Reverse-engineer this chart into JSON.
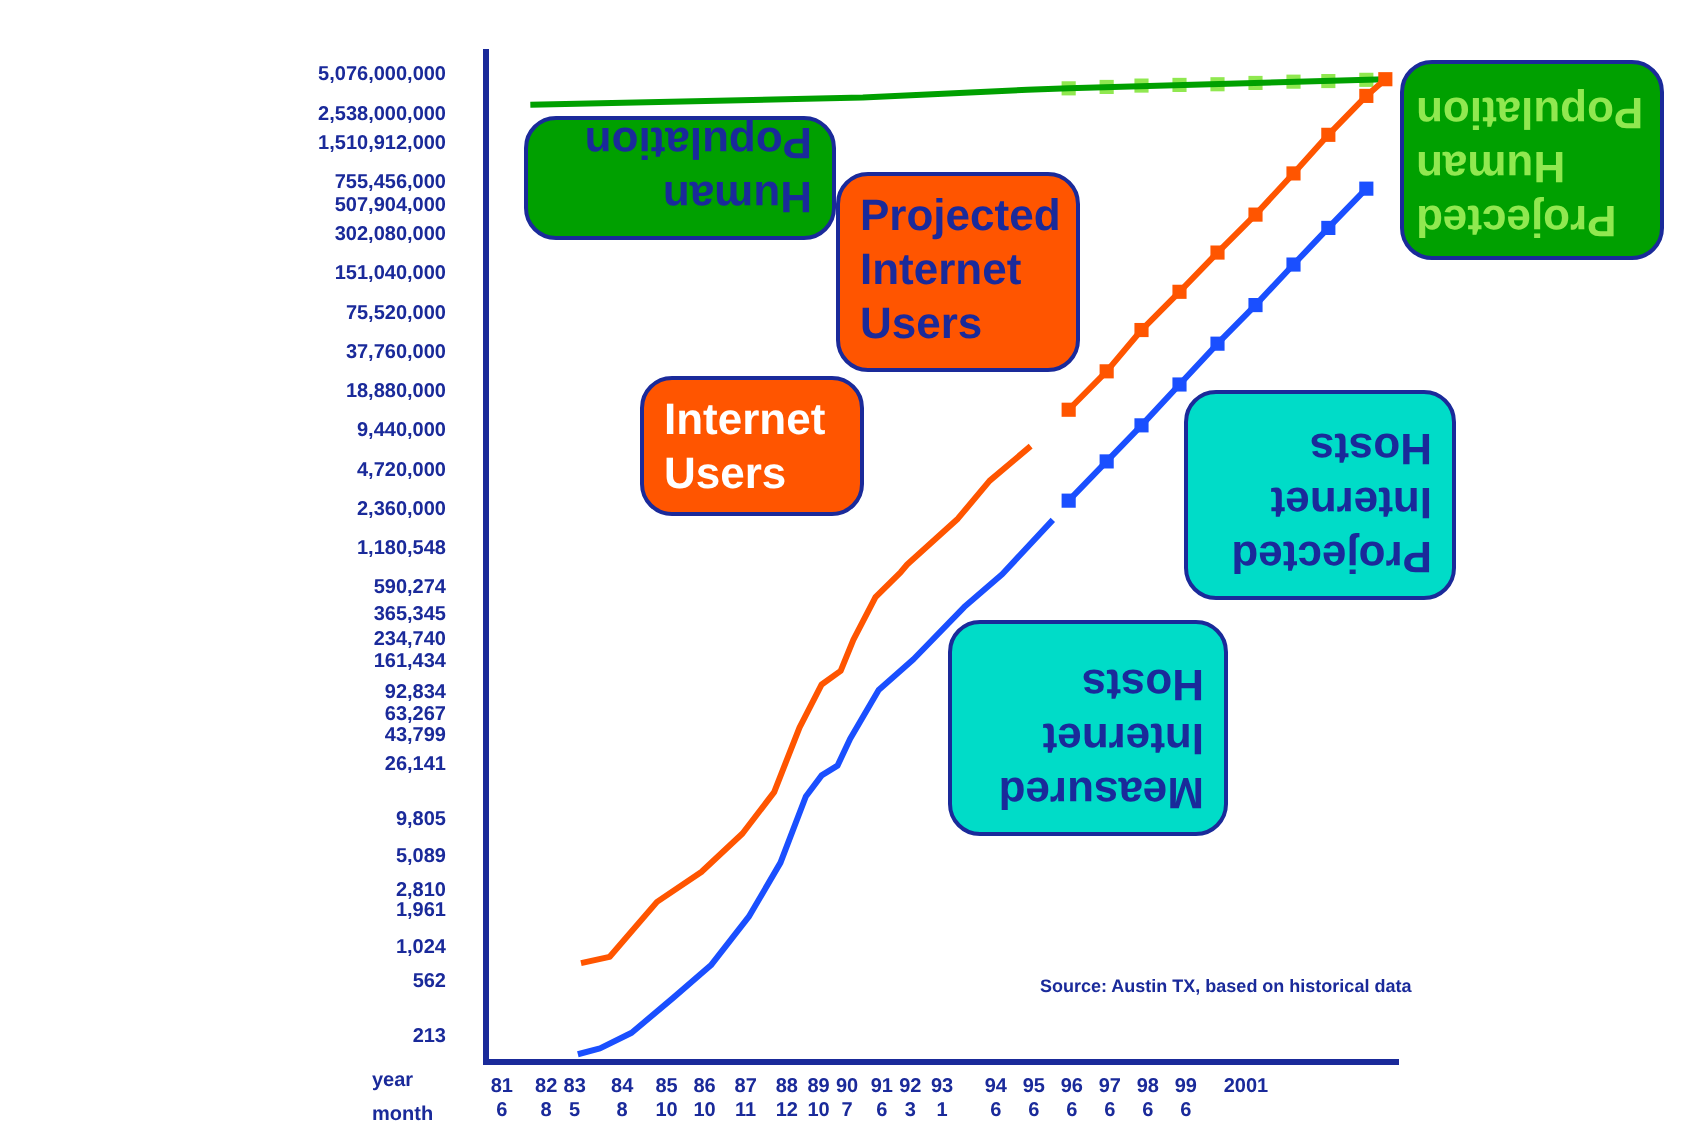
{
  "chart_data": {
    "type": "line",
    "log": "y",
    "grid": false,
    "legend": false,
    "annotations": [
      "year",
      "month",
      "Source: Austin TX, based on historical data"
    ],
    "xlim": [
      "1981-01",
      "2005-01"
    ],
    "xticks": [
      {
        "value": "1981-06",
        "label": "81\n6"
      },
      {
        "value": "1982-08",
        "label": "82\n8"
      },
      {
        "value": "1983-05",
        "label": "83\n5"
      },
      {
        "value": "1984-08",
        "label": "84\n8"
      },
      {
        "value": "1985-10",
        "label": "85\n10"
      },
      {
        "value": "1986-10",
        "label": "86\n10"
      },
      {
        "value": "1987-11",
        "label": "87\n11"
      },
      {
        "value": "1988-12",
        "label": "88\n12"
      },
      {
        "value": "1989-10",
        "label": "89\n10"
      },
      {
        "value": "1990-07",
        "label": "90\n7"
      },
      {
        "value": "1991-06",
        "label": "91\n6"
      },
      {
        "value": "1992-03",
        "label": "92\n3"
      },
      {
        "value": "1993-01",
        "label": "93\n1"
      },
      {
        "value": "1994-06",
        "label": "94\n6"
      },
      {
        "value": "1995-06",
        "label": "95\n6"
      },
      {
        "value": "1996-06",
        "label": "96\n6"
      },
      {
        "value": "1997-06",
        "label": "97\n6"
      },
      {
        "value": "1998-06",
        "label": "98\n6"
      },
      {
        "value": "1999-06",
        "label": "99\n6"
      },
      {
        "value": "2001",
        "label": "2001"
      }
    ],
    "ylim": [
      136,
      7600000000
    ],
    "yticks": [
      {
        "value": 213,
        "label": "213"
      },
      {
        "value": 562,
        "label": "562"
      },
      {
        "value": 1024,
        "label": "1,024"
      },
      {
        "value": 1961,
        "label": "1,961"
      },
      {
        "value": 2810,
        "label": "2,810"
      },
      {
        "value": 5089,
        "label": "5,089"
      },
      {
        "value": 9805,
        "label": "9,805"
      },
      {
        "value": 26141,
        "label": "26,141"
      },
      {
        "value": 43799,
        "label": "43,799"
      },
      {
        "value": 63267,
        "label": "63,267"
      },
      {
        "value": 92834,
        "label": "92,834"
      },
      {
        "value": 161434,
        "label": "161,434"
      },
      {
        "value": 234740,
        "label": "234,740"
      },
      {
        "value": 365345,
        "label": "365,345"
      },
      {
        "value": 590274,
        "label": "590,274"
      },
      {
        "value": 1180548,
        "label": "1,180,548"
      },
      {
        "value": 2360000,
        "label": "2,360,000"
      },
      {
        "value": 4720000,
        "label": "4,720,000"
      },
      {
        "value": 9440000,
        "label": "9,440,000"
      },
      {
        "value": 18880000,
        "label": "18,880,000"
      },
      {
        "value": 37760000,
        "label": "37,760,000"
      },
      {
        "value": 75520000,
        "label": "75,520,000"
      },
      {
        "value": 151040000,
        "label": "151,040,000"
      },
      {
        "value": 302080000,
        "label": "302,080,000"
      },
      {
        "value": 507904000,
        "label": "507,904,000"
      },
      {
        "value": 755456000,
        "label": "755,456,000"
      },
      {
        "value": 1510912000,
        "label": "1,510,912,000"
      },
      {
        "value": 2538000000,
        "label": "2,538,000,000"
      },
      {
        "value": 5076000000,
        "label": "5,076,000,000"
      }
    ],
    "series": [
      {
        "name": "Internet Users",
        "color": "#ff5500",
        "marker": "none",
        "x": [
          "1983-07",
          "1984-04",
          "1985-07",
          "1986-09",
          "1987-10",
          "1988-08",
          "1989-04",
          "1989-11",
          "1990-05",
          "1990-09",
          "1991-04",
          "1991-12",
          "1992-02",
          "1993-06",
          "1994-04",
          "1995-05"
        ],
        "values": [
          780,
          870,
          2300,
          3900,
          7700,
          16000,
          50000,
          107000,
          136000,
          235000,
          500000,
          780000,
          890000,
          2000000,
          3900000,
          7200000
        ]
      },
      {
        "name": "Projected Internet Users",
        "color": "#ff5500",
        "marker": "square",
        "x": [
          "1996-05",
          "1997-05",
          "1998-04",
          "1999-04",
          "2000-04",
          "2001-04",
          "2002-04",
          "2003-03",
          "2004-03",
          "2004-09"
        ],
        "values": [
          13700000,
          27000000,
          56000000,
          110000000,
          220000000,
          430000000,
          890000000,
          1760000000,
          3500000000,
          4700000000
        ]
      },
      {
        "name": "Measured Internet Hosts",
        "color": "#1a4fff",
        "marker": "none",
        "x": [
          "1983-06",
          "1984-01",
          "1984-11",
          "1985-12",
          "1986-12",
          "1987-12",
          "1988-10",
          "1989-06",
          "1989-11",
          "1990-04",
          "1990-08",
          "1991-05",
          "1992-04",
          "1993-08",
          "1994-08",
          "1995-12"
        ],
        "values": [
          156,
          173,
          228,
          420,
          750,
          1770,
          4600,
          14800,
          21500,
          25500,
          41000,
          97000,
          167000,
          420000,
          750000,
          1960000
        ]
      },
      {
        "name": "Projected Internet Hosts",
        "color": "#1a4fff",
        "marker": "square",
        "x": [
          "1996-05",
          "1997-05",
          "1998-04",
          "1999-04",
          "2000-04",
          "2001-04",
          "2002-04",
          "2003-03",
          "2004-03"
        ],
        "values": [
          2750000,
          5500000,
          10400000,
          21400000,
          44000000,
          87000000,
          178000000,
          340000000,
          680000000
        ]
      },
      {
        "name": "Human Population",
        "color": "#00a000",
        "marker": "none",
        "x": [
          "1982-03",
          "1990-12",
          "1995-04",
          "1996-05",
          "2004-09"
        ],
        "values": [
          3000000000,
          3400000000,
          3900000000,
          4000000000,
          4700000000
        ]
      },
      {
        "name": "Projected Human Population",
        "type": "scatter",
        "color": "#90e850",
        "marker": "square",
        "x": [
          "1996-05",
          "1997-05",
          "1998-04",
          "1999-04",
          "2000-04",
          "2001-04",
          "2002-04",
          "2003-03",
          "2004-03"
        ],
        "values": [
          4000000000,
          4100000000,
          4200000000,
          4250000000,
          4300000000,
          4400000000,
          4500000000,
          4550000000,
          4650000000
        ]
      }
    ]
  }
}
